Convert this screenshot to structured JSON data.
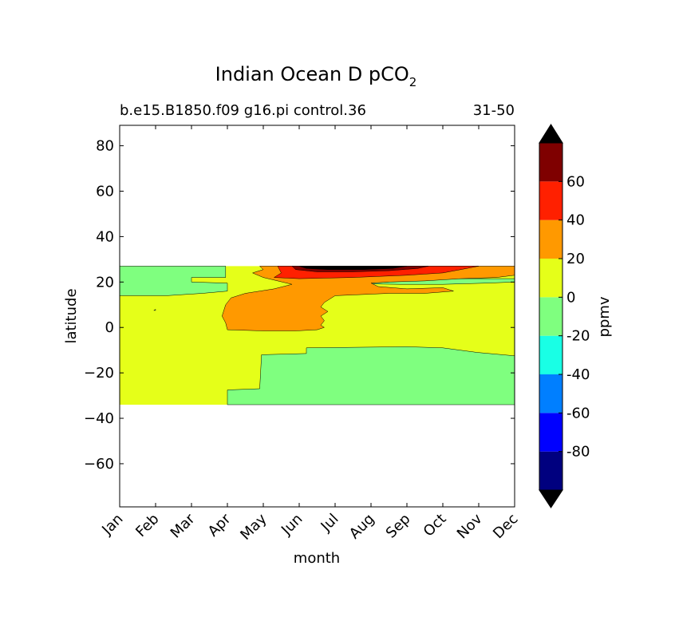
{
  "chart_data": {
    "type": "contourf",
    "title": "Indian Ocean D pCO",
    "title_subscript": "2",
    "subtitle_left": "b.e15.B1850.f09 g16.pi control.36",
    "subtitle_right": "31-50",
    "xlabel": "month",
    "ylabel": "latitude",
    "x_ticks": [
      "Jan",
      "Feb",
      "Mar",
      "Apr",
      "May",
      "Jun",
      "Jul",
      "Aug",
      "Sep",
      "Oct",
      "Nov",
      "Dec"
    ],
    "xlim": [
      0,
      11
    ],
    "y_ticks": [
      80,
      60,
      40,
      20,
      0,
      -20,
      -40,
      -60
    ],
    "y_tick_labels": [
      "80",
      "60",
      "40",
      "20",
      "0",
      "−20",
      "−40",
      "−60"
    ],
    "ylim": [
      -79,
      89
    ],
    "data_lat_range": [
      -34,
      27
    ],
    "colorbar": {
      "label": "ppmv",
      "levels": [
        -100,
        -80,
        -60,
        -40,
        -20,
        0,
        20,
        40,
        60,
        80
      ],
      "tick_values": [
        60,
        40,
        20,
        0,
        -20,
        -40,
        -60,
        -80
      ],
      "tick_labels": [
        "60",
        "40",
        "20",
        "0",
        "-20",
        "-40",
        "-60",
        "-80"
      ],
      "colors": [
        "#00007f",
        "#0000ff",
        "#007fff",
        "#19ffe5",
        "#7fff7f",
        "#e5ff19",
        "#ff9900",
        "#ff2000",
        "#7f0000"
      ],
      "extend_colors": {
        "min": "#000000",
        "max": "#000000"
      }
    },
    "regions": [
      {
        "level": "0 to 20",
        "color": "#e5ff19",
        "points": [
          [
            0,
            27
          ],
          [
            11,
            27
          ],
          [
            11,
            -34
          ],
          [
            0,
            -34
          ]
        ]
      },
      {
        "level": "-20 to 0",
        "color": "#7fff7f",
        "points": [
          [
            0,
            27
          ],
          [
            2.95,
            27
          ],
          [
            2.95,
            22
          ],
          [
            2.0,
            22
          ],
          [
            2.0,
            20
          ],
          [
            3.0,
            19.5
          ],
          [
            3.0,
            16
          ],
          [
            2.3,
            15
          ],
          [
            1.3,
            14
          ],
          [
            0,
            14
          ]
        ]
      },
      {
        "level": "-20 to 0",
        "color": "#7fff7f",
        "points": [
          [
            0.95,
            7.5
          ],
          [
            1.0,
            7.5
          ],
          [
            1.0,
            8
          ]
        ]
      },
      {
        "level": "-20 to 0",
        "color": "#7fff7f",
        "points": [
          [
            6.95,
            19.5
          ],
          [
            7.5,
            20
          ],
          [
            8.7,
            21
          ],
          [
            9.5,
            21.5
          ],
          [
            11,
            21.5
          ],
          [
            11,
            20
          ],
          [
            10.2,
            19.5
          ],
          [
            9.0,
            19
          ],
          [
            7.8,
            19
          ],
          [
            6.95,
            19.2
          ]
        ]
      },
      {
        "level": "-20 to 0",
        "color": "#7fff7f",
        "points": [
          [
            3.0,
            -34
          ],
          [
            3.0,
            -27.5
          ],
          [
            3.9,
            -27
          ],
          [
            3.95,
            -12
          ],
          [
            5.2,
            -11.5
          ],
          [
            5.2,
            -9
          ],
          [
            8.0,
            -8.5
          ],
          [
            9.0,
            -9
          ],
          [
            9.95,
            -11
          ],
          [
            11,
            -12.5
          ],
          [
            11,
            -34
          ]
        ]
      },
      {
        "level": "20 to 40",
        "color": "#ff9900",
        "points": [
          [
            3.9,
            27
          ],
          [
            11,
            27
          ],
          [
            11,
            23
          ],
          [
            10.5,
            22
          ],
          [
            9.5,
            21.5
          ],
          [
            8.5,
            20.5
          ],
          [
            7.5,
            20
          ],
          [
            7.0,
            19.5
          ],
          [
            7.2,
            18
          ],
          [
            8.0,
            17
          ],
          [
            9.0,
            17.5
          ],
          [
            9.3,
            16
          ],
          [
            8.5,
            15
          ],
          [
            7.5,
            15
          ],
          [
            6.0,
            14
          ],
          [
            5.7,
            11
          ],
          [
            5.6,
            9
          ],
          [
            5.8,
            7
          ],
          [
            5.6,
            5
          ],
          [
            5.7,
            3
          ],
          [
            5.6,
            1
          ],
          [
            5.7,
            0
          ],
          [
            5.5,
            -1
          ],
          [
            4.9,
            -1.5
          ],
          [
            4.0,
            -1.5
          ],
          [
            3.0,
            -1
          ],
          [
            2.95,
            2
          ],
          [
            2.85,
            5
          ],
          [
            2.95,
            10
          ],
          [
            3.1,
            13
          ],
          [
            3.5,
            15
          ],
          [
            4.3,
            17
          ],
          [
            4.8,
            19
          ],
          [
            4.0,
            22
          ],
          [
            3.7,
            24
          ],
          [
            4.0,
            25.5
          ]
        ]
      },
      {
        "level": "40 to 60",
        "color": "#ff2000",
        "points": [
          [
            4.4,
            27
          ],
          [
            10.0,
            27
          ],
          [
            9.5,
            25.5
          ],
          [
            9.0,
            24
          ],
          [
            8.0,
            23
          ],
          [
            6.5,
            22
          ],
          [
            5.0,
            21.5
          ],
          [
            4.3,
            22
          ],
          [
            4.5,
            24
          ]
        ]
      },
      {
        "level": "60 to 80",
        "color": "#7f0000",
        "points": [
          [
            4.8,
            27
          ],
          [
            8.6,
            27
          ],
          [
            8.3,
            26
          ],
          [
            7.5,
            25
          ],
          [
            6.5,
            24.5
          ],
          [
            5.5,
            24.5
          ],
          [
            4.9,
            25.5
          ]
        ]
      },
      {
        "level": "> 80",
        "color": "#000000",
        "points": [
          [
            5.0,
            27
          ],
          [
            8.0,
            27
          ],
          [
            7.6,
            26
          ],
          [
            6.8,
            25.5
          ],
          [
            5.8,
            25.5
          ],
          [
            5.2,
            26
          ]
        ]
      }
    ]
  }
}
